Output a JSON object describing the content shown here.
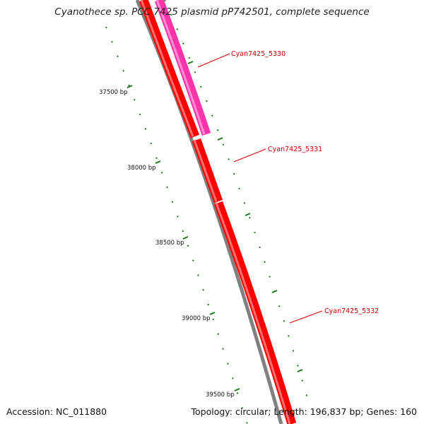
{
  "title": "Cyanothece sp. PCC 7425 plasmid pP742501, complete sequence",
  "footer": {
    "accession": "Accession: NC_011880",
    "summary": "Topology: circular; Length: 196,837 bp; Genes: 160"
  },
  "ticks": [
    {
      "label": "37500 bp"
    },
    {
      "label": "38000 bp"
    },
    {
      "label": "38500 bp"
    },
    {
      "label": "39000 bp"
    },
    {
      "label": "39500 bp"
    }
  ],
  "genes": [
    {
      "label": "Cyan7425_5330",
      "color": "#ff33aa"
    },
    {
      "label": "Cyan7425_5331",
      "color": "#ff0000"
    },
    {
      "label": "Cyan7425_5332",
      "color": "#ff0000"
    }
  ],
  "colors": {
    "backbone": "#808080",
    "tick": "#1a7a1a",
    "label_line": "#dd0000"
  }
}
